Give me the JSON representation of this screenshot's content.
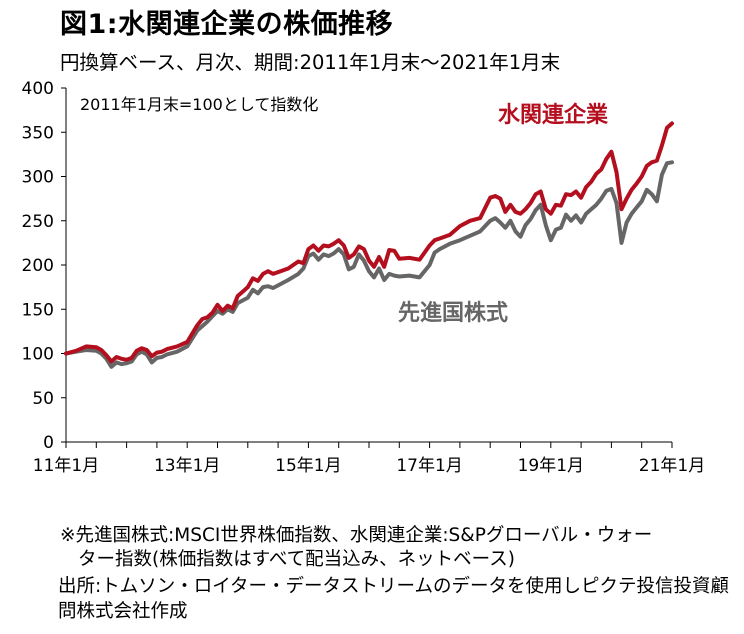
{
  "title": "図1:水関連企業の株価推移",
  "subtitle": "円換算ベース、月次、期間:2011年1月末～2021年1月末",
  "notes": {
    "line1": "※先進国株式:MSCI世界株価指数、水関連企業:S&Pグローバル・ウォー",
    "line2": "ター指数(株価指数はすべて配当込み、ネットベース)",
    "line3": "出所:トムソン・ロイター・データストリームのデータを使用しピクテ投信投資顧",
    "line4": "問株式会社作成"
  },
  "colors": {
    "water": "#b40f1e",
    "developed": "#666666",
    "axis": "#000000"
  },
  "chart_data": {
    "type": "line",
    "annotation": "2011年1月末=100として指数化",
    "ylim": [
      0,
      400
    ],
    "yticks": [
      0,
      50,
      100,
      150,
      200,
      250,
      300,
      350,
      400
    ],
    "xlim": [
      0,
      120
    ],
    "xticks": [
      {
        "x": 0,
        "label": "11年1月"
      },
      {
        "x": 24,
        "label": "13年1月"
      },
      {
        "x": 48,
        "label": "15年1月"
      },
      {
        "x": 72,
        "label": "17年1月"
      },
      {
        "x": 96,
        "label": "19年1月"
      },
      {
        "x": 120,
        "label": "21年1月"
      }
    ],
    "series": [
      {
        "name": "水関連企業",
        "color": "#b40f1e",
        "x": [
          0,
          2,
          4,
          6,
          7,
          8,
          9,
          10,
          11,
          12,
          13,
          14,
          15,
          16,
          17,
          18,
          19,
          20,
          22,
          24,
          26,
          27,
          28,
          29,
          30,
          31,
          32,
          33,
          34,
          35,
          36,
          37,
          38,
          39,
          40,
          41,
          42,
          44,
          46,
          47,
          48,
          49,
          50,
          51,
          52,
          53,
          54,
          55,
          56,
          57,
          58,
          59,
          60,
          61,
          62,
          63,
          64,
          65,
          66,
          68,
          70,
          72,
          73,
          74,
          76,
          78,
          80,
          82,
          84,
          85,
          86,
          87,
          88,
          89,
          90,
          91,
          92,
          93,
          94,
          95,
          96,
          97,
          98,
          99,
          100,
          101,
          102,
          103,
          104,
          105,
          106,
          107,
          108,
          109,
          110,
          111,
          112,
          113,
          114,
          115,
          116,
          117,
          118,
          119,
          120
        ],
        "values": [
          100,
          103,
          108,
          107,
          104,
          98,
          91,
          96,
          94,
          93,
          95,
          103,
          106,
          104,
          97,
          101,
          102,
          105,
          108,
          113,
          132,
          139,
          141,
          146,
          155,
          148,
          154,
          151,
          165,
          170,
          175,
          185,
          182,
          190,
          193,
          190,
          192,
          196,
          204,
          202,
          218,
          222,
          216,
          222,
          221,
          224,
          228,
          222,
          208,
          212,
          221,
          218,
          205,
          198,
          209,
          198,
          217,
          216,
          207,
          208,
          206,
          222,
          228,
          230,
          234,
          244,
          250,
          253,
          276,
          278,
          275,
          260,
          268,
          260,
          258,
          263,
          270,
          280,
          283,
          263,
          258,
          268,
          267,
          280,
          279,
          283,
          276,
          288,
          294,
          303,
          308,
          320,
          328,
          305,
          263,
          275,
          285,
          292,
          300,
          312,
          316,
          318,
          335,
          355,
          360
        ]
      },
      {
        "name": "先進国株式",
        "color": "#666666",
        "x": [
          0,
          2,
          4,
          6,
          7,
          8,
          9,
          10,
          11,
          12,
          13,
          14,
          15,
          16,
          17,
          18,
          19,
          20,
          22,
          24,
          26,
          27,
          28,
          29,
          30,
          31,
          32,
          33,
          34,
          35,
          36,
          37,
          38,
          39,
          40,
          41,
          42,
          44,
          46,
          47,
          48,
          49,
          50,
          51,
          52,
          53,
          54,
          55,
          56,
          57,
          58,
          59,
          60,
          61,
          62,
          63,
          64,
          65,
          66,
          68,
          70,
          72,
          73,
          74,
          76,
          78,
          80,
          82,
          84,
          85,
          86,
          87,
          88,
          89,
          90,
          91,
          92,
          93,
          94,
          95,
          96,
          97,
          98,
          99,
          100,
          101,
          102,
          103,
          104,
          105,
          106,
          107,
          108,
          109,
          110,
          111,
          112,
          113,
          114,
          115,
          116,
          117,
          118,
          119,
          120
        ],
        "values": [
          100,
          102,
          104,
          103,
          100,
          94,
          85,
          90,
          88,
          89,
          91,
          99,
          102,
          99,
          90,
          95,
          96,
          99,
          102,
          108,
          126,
          131,
          136,
          142,
          148,
          145,
          150,
          147,
          157,
          160,
          163,
          172,
          168,
          175,
          176,
          174,
          177,
          183,
          190,
          196,
          210,
          213,
          206,
          212,
          210,
          213,
          218,
          212,
          195,
          198,
          212,
          205,
          193,
          186,
          196,
          183,
          190,
          188,
          187,
          188,
          186,
          200,
          214,
          218,
          224,
          228,
          233,
          238,
          250,
          253,
          248,
          242,
          250,
          238,
          232,
          245,
          252,
          262,
          268,
          245,
          228,
          240,
          242,
          257,
          250,
          256,
          248,
          258,
          263,
          268,
          275,
          284,
          286,
          270,
          225,
          248,
          258,
          265,
          272,
          285,
          280,
          272,
          302,
          315,
          316
        ]
      }
    ]
  }
}
